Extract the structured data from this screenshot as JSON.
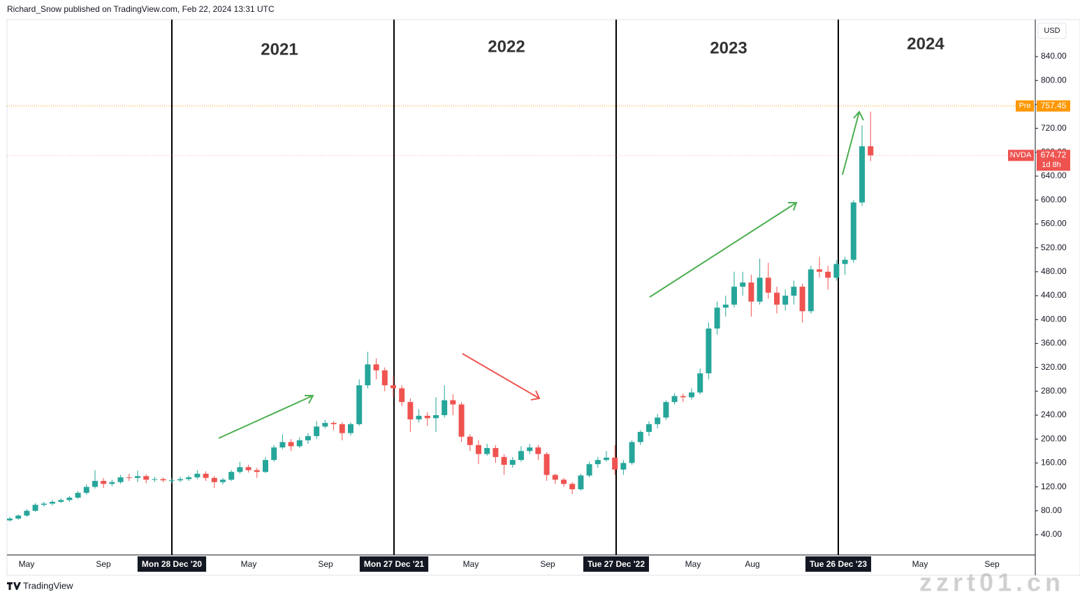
{
  "header": "Richard_Snow published on TradingView.com, Feb 22, 2024 13:31 UTC",
  "footer": "TradingView",
  "watermark": "zzrt01.cn",
  "year_labels": [
    "2021",
    "2022",
    "2023",
    "2024"
  ],
  "chart_data": {
    "type": "candlestick",
    "symbol": "NVDA",
    "currency": "USD",
    "countdown": "1d 8h",
    "pre_label": "Pre",
    "pre_price": 757.45,
    "up_color": "#26a69a",
    "down_color": "#ef5350",
    "xticks": [
      "May",
      "Sep",
      "Mon 28 Dec '20",
      "May",
      "Sep",
      "Mon 27 Dec '21",
      "May",
      "Sep",
      "Tue 27 Dec '22",
      "May",
      "Aug",
      "Tue 26 Dec '23",
      "May",
      "Sep"
    ],
    "ylim": [
      20,
      880
    ],
    "yticks": [
      {
        "value": 40,
        "label": "40.00"
      },
      {
        "value": 80,
        "label": "80.00"
      },
      {
        "value": 120,
        "label": "120.00"
      },
      {
        "value": 160,
        "label": "160.00"
      },
      {
        "value": 200,
        "label": "200.00"
      },
      {
        "value": 240,
        "label": "240.00"
      },
      {
        "value": 280,
        "label": "280.00"
      },
      {
        "value": 320,
        "label": "320.00"
      },
      {
        "value": 360,
        "label": "360.00"
      },
      {
        "value": 400,
        "label": "400.00"
      },
      {
        "value": 440,
        "label": "440.00"
      },
      {
        "value": 480,
        "label": "480.00"
      },
      {
        "value": 520,
        "label": "520.00"
      },
      {
        "value": 560,
        "label": "560.00"
      },
      {
        "value": 600,
        "label": "600.00"
      },
      {
        "value": 640,
        "label": "640.00"
      },
      {
        "value": 680,
        "label": "680.00"
      },
      {
        "value": 720,
        "label": "720.00"
      },
      {
        "value": 760,
        "label": "760.00"
      },
      {
        "value": 800,
        "label": "800.00"
      },
      {
        "value": 840,
        "label": "840.00"
      }
    ],
    "ohlc": [
      [
        64,
        70,
        62,
        67
      ],
      [
        67,
        74,
        65,
        72
      ],
      [
        72,
        83,
        70,
        80
      ],
      [
        80,
        93,
        78,
        90
      ],
      [
        90,
        95,
        87,
        92
      ],
      [
        92,
        98,
        89,
        95
      ],
      [
        95,
        101,
        93,
        98
      ],
      [
        98,
        105,
        95,
        102
      ],
      [
        102,
        113,
        100,
        110
      ],
      [
        110,
        124,
        107,
        120
      ],
      [
        120,
        148,
        117,
        130
      ],
      [
        130,
        135,
        118,
        125
      ],
      [
        125,
        132,
        121,
        128
      ],
      [
        128,
        140,
        125,
        136
      ],
      [
        136,
        142,
        130,
        135
      ],
      [
        135,
        147,
        128,
        138
      ],
      [
        138,
        141,
        126,
        132
      ],
      [
        132,
        137,
        128,
        133
      ],
      [
        133,
        136,
        128,
        131
      ],
      [
        131,
        135,
        126,
        131
      ],
      [
        131,
        137,
        128,
        133
      ],
      [
        133,
        139,
        130,
        136
      ],
      [
        136,
        148,
        133,
        142
      ],
      [
        142,
        146,
        130,
        135
      ],
      [
        135,
        138,
        118,
        128
      ],
      [
        128,
        135,
        124,
        132
      ],
      [
        132,
        148,
        130,
        145
      ],
      [
        145,
        162,
        142,
        153
      ],
      [
        153,
        157,
        144,
        148
      ],
      [
        148,
        152,
        135,
        145
      ],
      [
        145,
        170,
        143,
        165
      ],
      [
        165,
        190,
        162,
        186
      ],
      [
        186,
        208,
        183,
        195
      ],
      [
        195,
        200,
        180,
        188
      ],
      [
        188,
        203,
        185,
        198
      ],
      [
        198,
        210,
        192,
        205
      ],
      [
        205,
        230,
        200,
        221
      ],
      [
        221,
        232,
        218,
        227
      ],
      [
        227,
        230,
        215,
        225
      ],
      [
        225,
        228,
        198,
        210
      ],
      [
        210,
        228,
        206,
        225
      ],
      [
        225,
        300,
        222,
        290
      ],
      [
        290,
        346,
        285,
        325
      ],
      [
        325,
        335,
        300,
        315
      ],
      [
        315,
        320,
        280,
        290
      ],
      [
        290,
        305,
        270,
        285
      ],
      [
        285,
        290,
        255,
        262
      ],
      [
        262,
        268,
        212,
        233
      ],
      [
        233,
        250,
        228,
        239
      ],
      [
        239,
        245,
        222,
        235
      ],
      [
        235,
        270,
        212,
        240
      ],
      [
        240,
        290,
        236,
        265
      ],
      [
        265,
        275,
        240,
        258
      ],
      [
        258,
        262,
        195,
        204
      ],
      [
        204,
        208,
        180,
        190
      ],
      [
        190,
        198,
        158,
        175
      ],
      [
        175,
        192,
        172,
        185
      ],
      [
        185,
        190,
        160,
        170
      ],
      [
        170,
        175,
        140,
        157
      ],
      [
        157,
        170,
        152,
        165
      ],
      [
        165,
        188,
        162,
        180
      ],
      [
        180,
        192,
        175,
        186
      ],
      [
        186,
        190,
        165,
        175
      ],
      [
        175,
        178,
        130,
        140
      ],
      [
        140,
        142,
        125,
        132
      ],
      [
        132,
        135,
        120,
        125
      ],
      [
        125,
        128,
        108,
        116
      ],
      [
        116,
        142,
        114,
        139
      ],
      [
        139,
        162,
        136,
        158
      ],
      [
        158,
        170,
        152,
        165
      ],
      [
        165,
        180,
        162,
        169
      ],
      [
        169,
        190,
        140,
        149
      ],
      [
        149,
        165,
        140,
        160
      ],
      [
        160,
        198,
        157,
        195
      ],
      [
        195,
        215,
        190,
        212
      ],
      [
        212,
        230,
        205,
        225
      ],
      [
        225,
        242,
        218,
        236
      ],
      [
        236,
        265,
        232,
        262
      ],
      [
        262,
        277,
        258,
        272
      ],
      [
        272,
        276,
        262,
        270
      ],
      [
        270,
        285,
        266,
        278
      ],
      [
        278,
        318,
        275,
        310
      ],
      [
        310,
        395,
        300,
        385
      ],
      [
        385,
        430,
        375,
        420
      ],
      [
        420,
        440,
        405,
        425
      ],
      [
        425,
        480,
        420,
        455
      ],
      [
        455,
        480,
        440,
        462
      ],
      [
        462,
        475,
        405,
        430
      ],
      [
        430,
        502,
        425,
        470
      ],
      [
        470,
        495,
        435,
        445
      ],
      [
        445,
        455,
        410,
        425
      ],
      [
        425,
        450,
        415,
        440
      ],
      [
        440,
        465,
        425,
        455
      ],
      [
        455,
        460,
        395,
        414
      ],
      [
        414,
        490,
        410,
        484
      ],
      [
        484,
        505,
        470,
        480
      ],
      [
        480,
        490,
        450,
        470
      ],
      [
        470,
        500,
        465,
        493
      ],
      [
        493,
        505,
        475,
        500
      ],
      [
        500,
        600,
        495,
        596
      ],
      [
        596,
        725,
        590,
        690
      ],
      [
        690,
        748,
        665,
        674.72
      ]
    ]
  }
}
